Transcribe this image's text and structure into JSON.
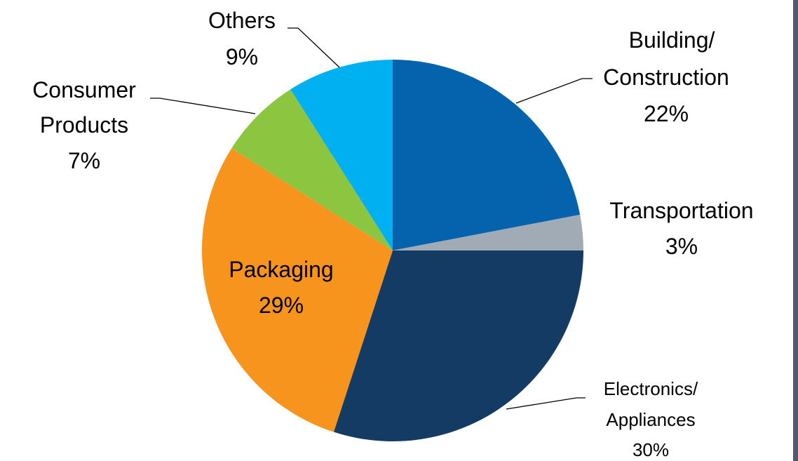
{
  "chart_data": {
    "type": "pie",
    "title": "",
    "slices": [
      {
        "label_lines": [
          "Building/",
          "Construction"
        ],
        "pct_text": "22%",
        "value": 22,
        "color": "#0563ad"
      },
      {
        "label_lines": [
          "Transportation"
        ],
        "pct_text": "3%",
        "value": 3,
        "color": "#a1abb5"
      },
      {
        "label_lines": [
          "Electronics/",
          "Appliances"
        ],
        "pct_text": "30%",
        "value": 30,
        "color": "#133b63"
      },
      {
        "label_lines": [
          "Packaging"
        ],
        "pct_text": "29%",
        "value": 29,
        "color": "#f7941d"
      },
      {
        "label_lines": [
          "Consumer",
          "Products"
        ],
        "pct_text": "7%",
        "value": 7,
        "color": "#8cc540"
      },
      {
        "label_lines": [
          "Others"
        ],
        "pct_text": "9%",
        "value": 9,
        "color": "#00b0f0"
      }
    ]
  },
  "colors": {
    "frame_accent": "#4f5a6e",
    "leader_line": "#000000"
  }
}
